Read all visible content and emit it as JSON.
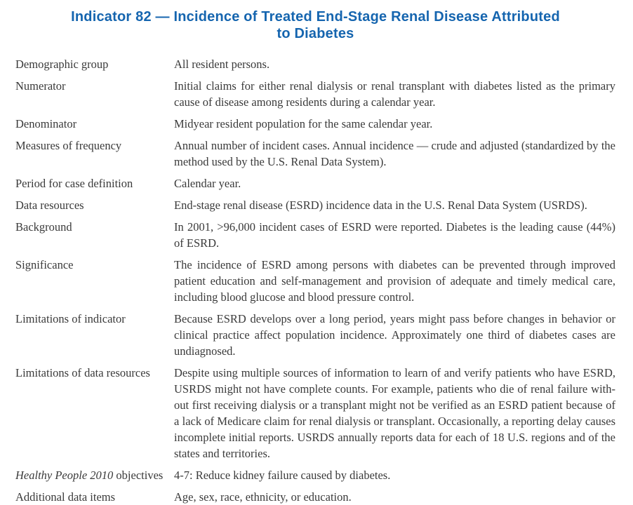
{
  "title": {
    "text": "Indicator 82 — Incidence of Treated End-Stage Renal Disease Attributed to Diabetes",
    "color": "#1565af"
  },
  "text_color": "#3a3a3a",
  "rows": [
    {
      "label_italic": "",
      "label": "Demographic group",
      "value": "All resident persons."
    },
    {
      "label_italic": "",
      "label": "Numerator",
      "value": "Initial claims for either renal dialysis or renal transplant with diabetes listed as the primary cause of disease among residents during a calendar year."
    },
    {
      "label_italic": "",
      "label": "Denominator",
      "value": "Midyear resident population for the same calendar year."
    },
    {
      "label_italic": "",
      "label": "Measures of frequency",
      "value": "Annual number of incident cases. Annual incidence — crude and adjusted (standardized by the method used by the U.S. Renal Data System)."
    },
    {
      "label_italic": "",
      "label": "Period for case definition",
      "value": "Calendar year."
    },
    {
      "label_italic": "",
      "label": "Data resources",
      "value": "End-stage renal disease (ESRD) incidence data in the U.S. Renal Data System (USRDS)."
    },
    {
      "label_italic": "",
      "label": "Background",
      "value": "In 2001, >96,000 incident cases of ESRD were reported. Diabetes is the leading cause (44%) of ESRD."
    },
    {
      "label_italic": "",
      "label": "Significance",
      "value": "The incidence of ESRD among persons with diabetes can be prevented through improved patient education and self-management and provision of adequate and timely medical care, including blood glucose and blood pressure control."
    },
    {
      "label_italic": "",
      "label": "Limitations of indicator",
      "value": "Because ESRD develops over a long period, years might pass before changes in behavior or clinical practice affect population incidence. Approximately one third of diabetes cases are undiagnosed."
    },
    {
      "label_italic": "",
      "label": "Limitations of data resources",
      "value": "Despite using multiple sources of information to learn of and verify patients who have ESRD, USRDS might not have complete counts. For example, patients who die of renal failure with-out first receiving dialysis or a transplant might not be verified as an ESRD patient because of a lack of Medicare claim for renal dialysis or transplant. Occasionally, a reporting delay causes incomplete initial reports. USRDS annually reports data for each of 18 U.S. regions and of the states and territories."
    },
    {
      "label_italic": "Healthy People 2010",
      "label": " objectives",
      "value": "4-7: Reduce kidney failure caused by diabetes."
    },
    {
      "label_italic": "",
      "label": "Additional data items",
      "value": "Age, sex, race, ethnicity, or education."
    }
  ]
}
